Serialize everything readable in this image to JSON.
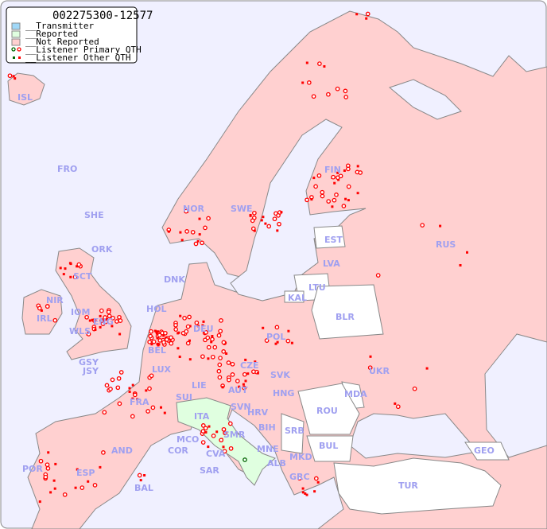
{
  "title": "002275300-12577",
  "legend": {
    "items": [
      {
        "label": "__Transmitter",
        "color": "#a0d8f8"
      },
      {
        "label": "__Reported",
        "color": "#e0ffe0"
      },
      {
        "label": "__Not Reported",
        "color": "#ffd0d0"
      },
      {
        "label": "__Listener Primary QTH",
        "marker": "circle-icon"
      },
      {
        "label": "__Listener Other QTH",
        "marker": "square-icon"
      }
    ]
  },
  "colors": {
    "sea": "#f0f0ff",
    "not_reported": "#ffd0d0",
    "reported": "#e0ffe0",
    "no_data": "#ffffff",
    "marker": "#ff0000",
    "label": "#a0a0f0"
  },
  "countries": [
    "ISL",
    "FRO",
    "SHE",
    "ORK",
    "NOR",
    "SWE",
    "FIN",
    "EST",
    "LVA",
    "LTU",
    "RUS",
    "DNK",
    "KAL",
    "BLR",
    "HOL",
    "SCT",
    "NIR",
    "IOM",
    "IRL",
    "WLS",
    "ENG",
    "DEU",
    "POL",
    "GSY",
    "JSY",
    "BEL",
    "LUX",
    "CZE",
    "SVK",
    "UKR",
    "FRA",
    "SUI",
    "LIE",
    "AUT",
    "HNG",
    "MDA",
    "SVN",
    "HRV",
    "ROU",
    "ITA",
    "MCO",
    "COR",
    "SMR",
    "BIH",
    "SRB",
    "AND",
    "CVA",
    "MNE",
    "BUL",
    "GEO",
    "POR",
    "ESP",
    "SAR",
    "ALB",
    "MKD",
    "GRC",
    "TUR",
    "BAL"
  ]
}
